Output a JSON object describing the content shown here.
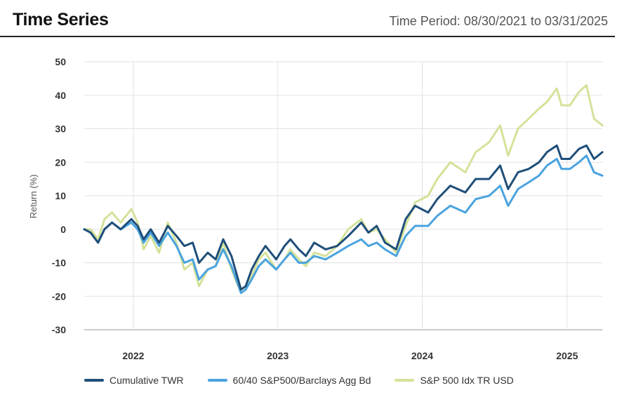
{
  "header": {
    "title": "Time Series",
    "period": "Time Period: 08/30/2021 to 03/31/2025"
  },
  "chart_data": {
    "type": "line",
    "title": "Time Series",
    "subtitle": "Time Period: 08/30/2021 to 03/31/2025",
    "xlabel": "",
    "ylabel": "Return (%)",
    "xlim": [
      "2021-08-30",
      "2025-03-31"
    ],
    "ylim": [
      -30,
      50
    ],
    "yticks": [
      50,
      40,
      30,
      20,
      10,
      0,
      -10,
      -20,
      -30
    ],
    "ytick_labels": [
      "50",
      "40",
      "30",
      "20",
      "10",
      "0",
      "-10",
      "-20",
      "-30"
    ],
    "xticks": [
      "2022-01-01",
      "2023-01-01",
      "2024-01-01",
      "2025-01-01"
    ],
    "xtick_labels": [
      "2022",
      "2023",
      "2024",
      "2025"
    ],
    "grid": true,
    "legend_position": "bottom",
    "series": [
      {
        "name": "Cumulative TWR",
        "color": "#1f4e79",
        "points": [
          [
            "2021-08-30",
            0
          ],
          [
            "2021-09-15",
            -1
          ],
          [
            "2021-10-04",
            -4
          ],
          [
            "2021-10-20",
            0
          ],
          [
            "2021-11-08",
            2
          ],
          [
            "2021-11-30",
            0
          ],
          [
            "2021-12-27",
            3
          ],
          [
            "2022-01-12",
            1
          ],
          [
            "2022-01-27",
            -3
          ],
          [
            "2022-02-14",
            0
          ],
          [
            "2022-03-07",
            -4
          ],
          [
            "2022-03-29",
            1
          ],
          [
            "2022-04-20",
            -2
          ],
          [
            "2022-05-10",
            -5
          ],
          [
            "2022-05-31",
            -4
          ],
          [
            "2022-06-16",
            -10
          ],
          [
            "2022-07-08",
            -7
          ],
          [
            "2022-07-28",
            -9
          ],
          [
            "2022-08-16",
            -3
          ],
          [
            "2022-09-06",
            -8
          ],
          [
            "2022-09-30",
            -18
          ],
          [
            "2022-10-12",
            -17
          ],
          [
            "2022-10-27",
            -12
          ],
          [
            "2022-11-14",
            -8
          ],
          [
            "2022-12-01",
            -5
          ],
          [
            "2022-12-28",
            -9
          ],
          [
            "2023-01-18",
            -5
          ],
          [
            "2023-02-02",
            -3
          ],
          [
            "2023-02-23",
            -6
          ],
          [
            "2023-03-13",
            -8
          ],
          [
            "2023-04-03",
            -4
          ],
          [
            "2023-05-02",
            -6
          ],
          [
            "2023-05-31",
            -5
          ],
          [
            "2023-06-28",
            -2
          ],
          [
            "2023-07-31",
            2
          ],
          [
            "2023-08-18",
            -1
          ],
          [
            "2023-09-08",
            1
          ],
          [
            "2023-09-29",
            -4
          ],
          [
            "2023-10-27",
            -6
          ],
          [
            "2023-11-20",
            3
          ],
          [
            "2023-12-14",
            7
          ],
          [
            "2024-01-16",
            5
          ],
          [
            "2024-02-08",
            9
          ],
          [
            "2024-03-12",
            13
          ],
          [
            "2024-04-19",
            11
          ],
          [
            "2024-05-15",
            15
          ],
          [
            "2024-06-18",
            15
          ],
          [
            "2024-07-16",
            19
          ],
          [
            "2024-08-05",
            12
          ],
          [
            "2024-08-30",
            17
          ],
          [
            "2024-09-26",
            18
          ],
          [
            "2024-10-22",
            20
          ],
          [
            "2024-11-11",
            23
          ],
          [
            "2024-12-06",
            25
          ],
          [
            "2024-12-18",
            21
          ],
          [
            "2025-01-08",
            21
          ],
          [
            "2025-01-31",
            24
          ],
          [
            "2025-02-19",
            25
          ],
          [
            "2025-03-10",
            21
          ],
          [
            "2025-03-31",
            23
          ]
        ]
      },
      {
        "name": "60/40 S&P500/Barclays Agg Bd",
        "color": "#4aa3df",
        "points": [
          [
            "2021-08-30",
            0
          ],
          [
            "2021-09-15",
            -1
          ],
          [
            "2021-10-04",
            -4
          ],
          [
            "2021-10-20",
            0
          ],
          [
            "2021-11-08",
            2
          ],
          [
            "2021-11-30",
            0
          ],
          [
            "2021-12-27",
            2
          ],
          [
            "2022-01-12",
            0
          ],
          [
            "2022-01-27",
            -4
          ],
          [
            "2022-02-14",
            -1
          ],
          [
            "2022-03-07",
            -5
          ],
          [
            "2022-03-29",
            -1
          ],
          [
            "2022-04-20",
            -5
          ],
          [
            "2022-05-10",
            -10
          ],
          [
            "2022-05-31",
            -9
          ],
          [
            "2022-06-16",
            -15
          ],
          [
            "2022-07-08",
            -12
          ],
          [
            "2022-07-28",
            -11
          ],
          [
            "2022-08-16",
            -6
          ],
          [
            "2022-09-06",
            -11
          ],
          [
            "2022-09-30",
            -19
          ],
          [
            "2022-10-12",
            -18
          ],
          [
            "2022-10-27",
            -15
          ],
          [
            "2022-11-14",
            -11
          ],
          [
            "2022-12-01",
            -9
          ],
          [
            "2022-12-28",
            -12
          ],
          [
            "2023-01-18",
            -9
          ],
          [
            "2023-02-02",
            -7
          ],
          [
            "2023-02-23",
            -10
          ],
          [
            "2023-03-13",
            -10
          ],
          [
            "2023-04-03",
            -8
          ],
          [
            "2023-05-02",
            -9
          ],
          [
            "2023-05-31",
            -7
          ],
          [
            "2023-06-28",
            -5
          ],
          [
            "2023-07-31",
            -3
          ],
          [
            "2023-08-18",
            -5
          ],
          [
            "2023-09-08",
            -4
          ],
          [
            "2023-09-29",
            -6
          ],
          [
            "2023-10-27",
            -8
          ],
          [
            "2023-11-20",
            -2
          ],
          [
            "2023-12-14",
            1
          ],
          [
            "2024-01-16",
            1
          ],
          [
            "2024-02-08",
            4
          ],
          [
            "2024-03-12",
            7
          ],
          [
            "2024-04-19",
            5
          ],
          [
            "2024-05-15",
            9
          ],
          [
            "2024-06-18",
            10
          ],
          [
            "2024-07-16",
            13
          ],
          [
            "2024-08-05",
            7
          ],
          [
            "2024-08-30",
            12
          ],
          [
            "2024-09-26",
            14
          ],
          [
            "2024-10-22",
            16
          ],
          [
            "2024-11-11",
            19
          ],
          [
            "2024-12-06",
            21
          ],
          [
            "2024-12-18",
            18
          ],
          [
            "2025-01-08",
            18
          ],
          [
            "2025-01-31",
            20
          ],
          [
            "2025-02-19",
            22
          ],
          [
            "2025-03-10",
            17
          ],
          [
            "2025-03-31",
            16
          ]
        ]
      },
      {
        "name": "S&P 500 Idx TR USD",
        "color": "#d4e29a",
        "points": [
          [
            "2021-08-30",
            0
          ],
          [
            "2021-09-15",
            0
          ],
          [
            "2021-10-04",
            -3
          ],
          [
            "2021-10-20",
            3
          ],
          [
            "2021-11-08",
            5
          ],
          [
            "2021-11-30",
            2
          ],
          [
            "2021-12-27",
            6
          ],
          [
            "2022-01-12",
            2
          ],
          [
            "2022-01-27",
            -6
          ],
          [
            "2022-02-14",
            -2
          ],
          [
            "2022-03-07",
            -7
          ],
          [
            "2022-03-29",
            2
          ],
          [
            "2022-04-20",
            -4
          ],
          [
            "2022-05-10",
            -12
          ],
          [
            "2022-05-31",
            -10
          ],
          [
            "2022-06-16",
            -17
          ],
          [
            "2022-07-08",
            -12
          ],
          [
            "2022-07-28",
            -11
          ],
          [
            "2022-08-16",
            -4
          ],
          [
            "2022-09-06",
            -12
          ],
          [
            "2022-09-30",
            -19
          ],
          [
            "2022-10-12",
            -18
          ],
          [
            "2022-10-27",
            -14
          ],
          [
            "2022-11-14",
            -9
          ],
          [
            "2022-12-01",
            -7
          ],
          [
            "2022-12-28",
            -12
          ],
          [
            "2023-01-18",
            -9
          ],
          [
            "2023-02-02",
            -6
          ],
          [
            "2023-02-23",
            -9
          ],
          [
            "2023-03-13",
            -11
          ],
          [
            "2023-04-03",
            -7
          ],
          [
            "2023-05-02",
            -8
          ],
          [
            "2023-05-31",
            -5
          ],
          [
            "2023-06-28",
            0
          ],
          [
            "2023-07-31",
            3
          ],
          [
            "2023-08-18",
            -1
          ],
          [
            "2023-09-08",
            0
          ],
          [
            "2023-09-29",
            -3
          ],
          [
            "2023-10-27",
            -7
          ],
          [
            "2023-11-20",
            1
          ],
          [
            "2023-12-14",
            8
          ],
          [
            "2024-01-16",
            10
          ],
          [
            "2024-02-08",
            15
          ],
          [
            "2024-03-12",
            20
          ],
          [
            "2024-04-19",
            17
          ],
          [
            "2024-05-15",
            23
          ],
          [
            "2024-06-18",
            26
          ],
          [
            "2024-07-16",
            31
          ],
          [
            "2024-08-05",
            22
          ],
          [
            "2024-08-30",
            30
          ],
          [
            "2024-09-26",
            33
          ],
          [
            "2024-10-22",
            36
          ],
          [
            "2024-11-11",
            38
          ],
          [
            "2024-12-06",
            42
          ],
          [
            "2024-12-18",
            37
          ],
          [
            "2025-01-08",
            37
          ],
          [
            "2025-01-31",
            41
          ],
          [
            "2025-02-19",
            43
          ],
          [
            "2025-03-10",
            33
          ],
          [
            "2025-03-31",
            31
          ]
        ]
      }
    ]
  }
}
